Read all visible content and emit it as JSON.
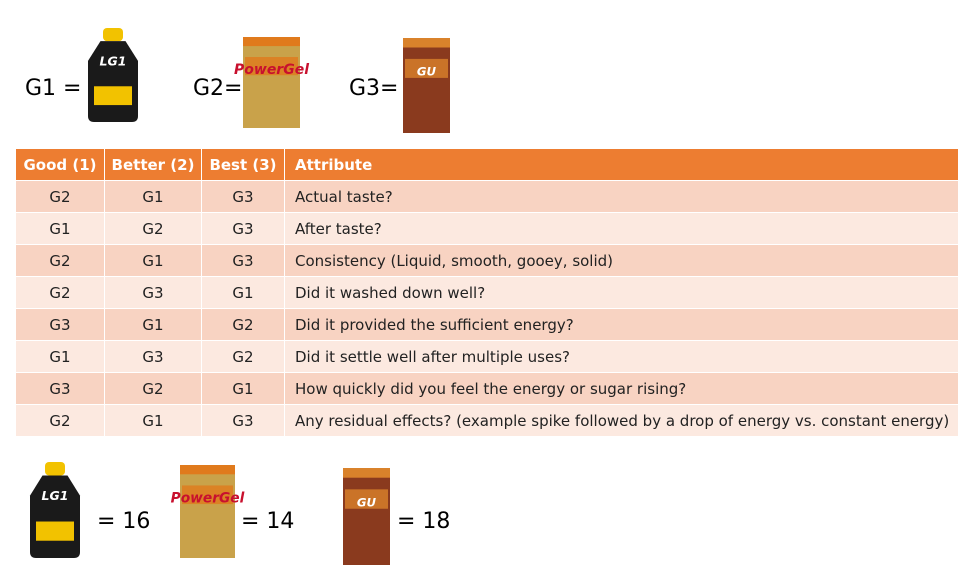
{
  "header": {
    "items": [
      {
        "label": "G1 =",
        "brand": "LG1"
      },
      {
        "label": "G2=",
        "brand": "PowerGel"
      },
      {
        "label": "G3=",
        "brand": "GU"
      }
    ]
  },
  "table": {
    "columns": [
      "Good (1)",
      "Better (2)",
      "Best (3)",
      "Attribute"
    ],
    "rows": [
      [
        "G2",
        "G1",
        "G3",
        "Actual taste?"
      ],
      [
        "G1",
        "G2",
        "G3",
        "After taste?"
      ],
      [
        "G2",
        "G1",
        "G3",
        "Consistency (Liquid, smooth, gooey, solid)"
      ],
      [
        "G2",
        "G3",
        "G1",
        "Did it washed down well?"
      ],
      [
        "G3",
        "G1",
        "G2",
        "Did it provided the sufficient energy?"
      ],
      [
        "G1",
        "G3",
        "G2",
        "Did it settle well after multiple uses?"
      ],
      [
        "G3",
        "G2",
        "G1",
        "How quickly did you feel the energy or sugar rising?"
      ],
      [
        "G2",
        "G1",
        "G3",
        "Any residual effects? (example spike followed by a drop of energy vs. constant energy)"
      ]
    ]
  },
  "results": [
    {
      "brand": "LG1",
      "score": "= 16"
    },
    {
      "brand": "PowerGel",
      "score": "= 14"
    },
    {
      "brand": "GU",
      "score": "= 18"
    }
  ]
}
